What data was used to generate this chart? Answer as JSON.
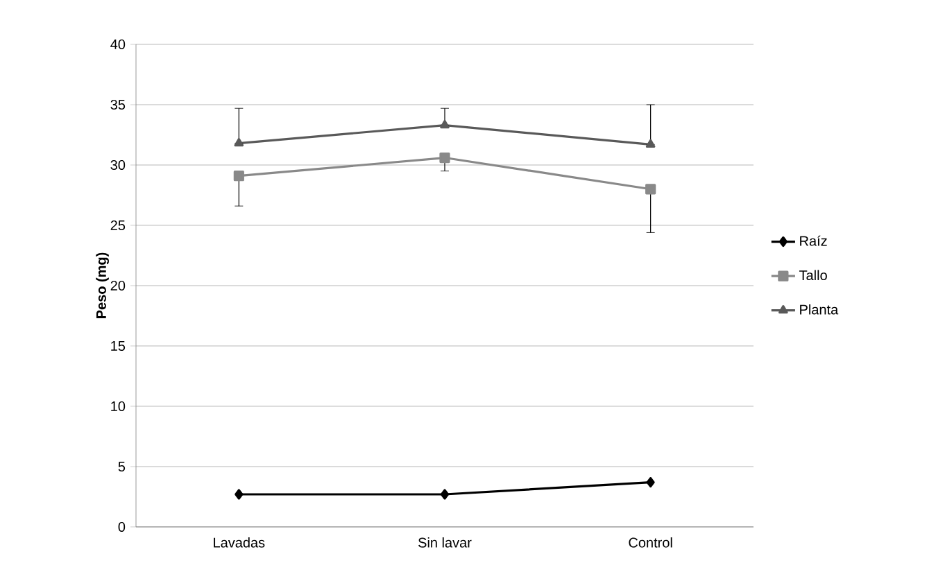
{
  "chart_data": {
    "type": "line",
    "ylabel": "Peso (mg)",
    "categories": [
      "Lavadas",
      "Sin lavar",
      "Control"
    ],
    "series": [
      {
        "name": "Raíz",
        "color": "#000000",
        "marker": "diamond",
        "values": [
          2.7,
          2.7,
          3.7
        ]
      },
      {
        "name": "Tallo",
        "color": "#898989",
        "marker": "square",
        "values": [
          29.1,
          30.6,
          28.0
        ],
        "errors": [
          [
            26.6,
            29.1
          ],
          [
            29.5,
            30.6
          ],
          [
            24.4,
            28.0
          ]
        ]
      },
      {
        "name": "Planta",
        "color": "#595959",
        "marker": "triangle",
        "values": [
          31.8,
          33.3,
          31.7
        ],
        "errors": [
          [
            31.8,
            34.7
          ],
          [
            33.3,
            34.7
          ],
          [
            31.7,
            35.0
          ]
        ]
      }
    ],
    "ylim": [
      0,
      40
    ],
    "yticks": [
      0,
      5,
      10,
      15,
      20,
      25,
      30,
      35,
      40
    ],
    "grid": "y",
    "legend": "right"
  }
}
